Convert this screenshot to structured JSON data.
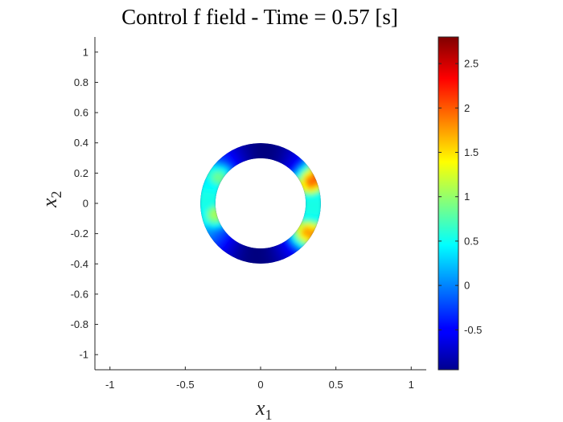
{
  "chart_data": {
    "type": "heatmap",
    "title": "Control f field - Time = 0.57 [s]",
    "xlabel": {
      "base": "x",
      "sub": "1"
    },
    "ylabel": {
      "base": "x",
      "sub": "2"
    },
    "xlim": [
      -1.1,
      1.1
    ],
    "ylim": [
      -1.1,
      1.1
    ],
    "xticks": [
      -1,
      -0.5,
      0,
      0.5,
      1
    ],
    "xtick_labels": [
      "-1",
      "-0.5",
      "0",
      "0.5",
      "1"
    ],
    "yticks": [
      1,
      0.8,
      0.6,
      0.4,
      0.2,
      0,
      -0.2,
      -0.4,
      -0.6,
      -0.8,
      -1
    ],
    "ytick_labels": [
      "1",
      "0.8",
      "0.6",
      "0.4",
      "0.2",
      "0",
      "-0.2",
      "-0.4",
      "-0.6",
      "-0.8",
      "-1"
    ],
    "colorbar": {
      "colormap": "jet",
      "range": [
        -0.95,
        2.8
      ],
      "ticks": [
        2.5,
        2,
        1.5,
        1,
        0.5,
        0,
        -0.5
      ],
      "tick_labels": [
        "2.5",
        "2",
        "1.5",
        "1",
        "0.5",
        "0",
        "-0.5"
      ]
    },
    "annulus": {
      "center": [
        0,
        0
      ],
      "inner_radius": 0.3,
      "outer_radius": 0.4,
      "field_peaks": [
        {
          "x": 0.33,
          "y": 0.17,
          "value": 2.0
        },
        {
          "x": 0.33,
          "y": -0.17,
          "value": 1.8
        },
        {
          "x": -0.3,
          "y": -0.1,
          "value": 1.1
        },
        {
          "x": -0.3,
          "y": 0.15,
          "value": 0.9
        }
      ],
      "field_min": -0.95
    }
  }
}
